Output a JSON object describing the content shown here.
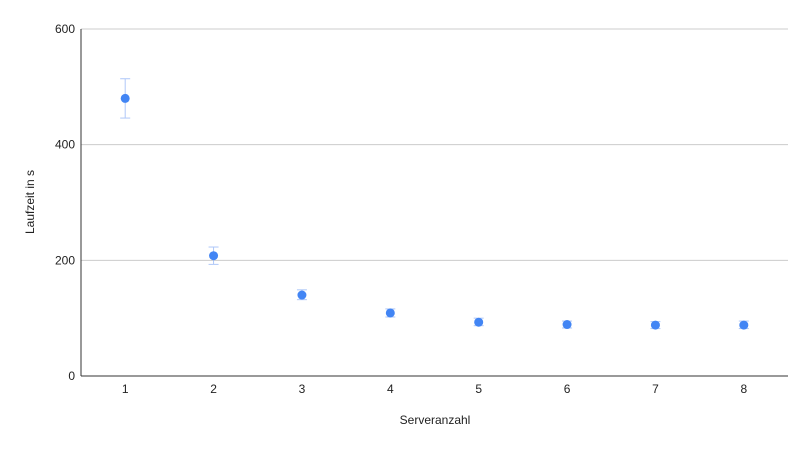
{
  "chart_data": {
    "type": "scatter",
    "title": "",
    "xlabel": "Serveranzahl",
    "ylabel": "Laufzeit in s",
    "x": [
      1,
      2,
      3,
      4,
      5,
      6,
      7,
      8
    ],
    "x_ticks": [
      "1",
      "2",
      "3",
      "4",
      "5",
      "6",
      "7",
      "8"
    ],
    "y_ticks": [
      "0",
      "200",
      "400",
      "600"
    ],
    "ylim": [
      0,
      600
    ],
    "grid": true,
    "legend": "none",
    "series": [
      {
        "values": [
          480,
          208,
          140,
          109,
          93,
          89,
          88,
          88
        ],
        "error_low": [
          446,
          193,
          132,
          102,
          87,
          83,
          82,
          82
        ],
        "error_high": [
          514,
          223,
          149,
          116,
          100,
          95,
          94,
          95
        ]
      }
    ],
    "colors": {
      "point": "#4285f4",
      "error_bar": "#aec7f8",
      "grid": "#cccccc",
      "axis": "#333333"
    }
  }
}
